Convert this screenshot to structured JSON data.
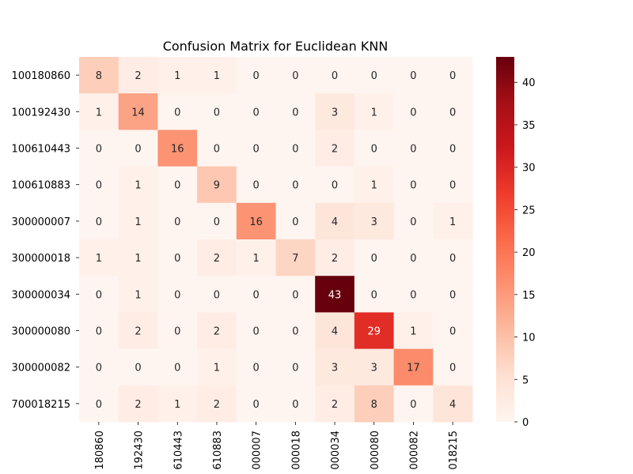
{
  "chart_data": {
    "type": "heatmap",
    "title": "Confusion Matrix for Euclidean KNN",
    "ylabel_partial": "...",
    "row_labels": [
      "100180860",
      "100192430",
      "100610443",
      "100610883",
      "300000007",
      "300000018",
      "300000034",
      "300000080",
      "300000082",
      "700018215"
    ],
    "col_labels": [
      "180860",
      "192430",
      "610443",
      "610883",
      "000007",
      "000018",
      "000034",
      "000080",
      "000082",
      "018215"
    ],
    "values": [
      [
        8,
        2,
        1,
        1,
        0,
        0,
        0,
        0,
        0,
        0
      ],
      [
        1,
        14,
        0,
        0,
        0,
        0,
        3,
        1,
        0,
        0
      ],
      [
        0,
        0,
        16,
        0,
        0,
        0,
        2,
        0,
        0,
        0
      ],
      [
        0,
        1,
        0,
        9,
        0,
        0,
        0,
        1,
        0,
        0
      ],
      [
        0,
        1,
        0,
        0,
        16,
        0,
        4,
        3,
        0,
        1
      ],
      [
        1,
        1,
        0,
        2,
        1,
        7,
        2,
        0,
        0,
        0
      ],
      [
        0,
        1,
        0,
        0,
        0,
        0,
        43,
        0,
        0,
        0
      ],
      [
        0,
        2,
        0,
        2,
        0,
        0,
        4,
        29,
        1,
        0
      ],
      [
        0,
        0,
        0,
        1,
        0,
        0,
        3,
        3,
        17,
        0
      ],
      [
        0,
        2,
        1,
        2,
        0,
        0,
        2,
        8,
        0,
        4
      ]
    ],
    "vmin": 0,
    "vmax": 43,
    "colorbar_ticks": [
      0,
      5,
      10,
      15,
      20,
      25,
      30,
      35,
      40
    ],
    "colormap": "Reds",
    "colormap_stops": [
      "#fff5f0",
      "#fee0d2",
      "#fcbba1",
      "#fc9272",
      "#fb6a4a",
      "#ef3b2c",
      "#cb181d",
      "#a50f15",
      "#67000d"
    ]
  }
}
